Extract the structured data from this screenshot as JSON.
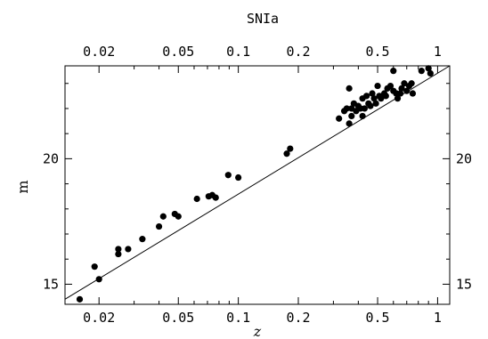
{
  "chart_data": {
    "type": "scatter",
    "title": "SNIa",
    "xlabel": "z",
    "ylabel": "m",
    "x_scale": "log",
    "xlim": [
      0.0135,
      1.15
    ],
    "ylim": [
      14.2,
      23.7
    ],
    "grid": false,
    "x_ticks": [
      {
        "value": 0.02,
        "label": "0.02"
      },
      {
        "value": 0.05,
        "label": "0.05"
      },
      {
        "value": 0.1,
        "label": "0.1"
      },
      {
        "value": 0.2,
        "label": "0.2"
      },
      {
        "value": 0.5,
        "label": "0.5"
      },
      {
        "value": 1,
        "label": "1"
      }
    ],
    "y_ticks": [
      {
        "value": 15,
        "label": "15"
      },
      {
        "value": 20,
        "label": "20"
      }
    ],
    "fit_line": {
      "x": [
        0.0135,
        1.15
      ],
      "y": [
        14.4,
        23.7
      ]
    },
    "series": [
      {
        "points": [
          [
            0.016,
            14.4
          ],
          [
            0.019,
            15.7
          ],
          [
            0.02,
            15.2
          ],
          [
            0.025,
            16.4
          ],
          [
            0.025,
            16.2
          ],
          [
            0.028,
            16.4
          ],
          [
            0.033,
            16.8
          ],
          [
            0.04,
            17.3
          ],
          [
            0.042,
            17.7
          ],
          [
            0.048,
            17.8
          ],
          [
            0.05,
            17.7
          ],
          [
            0.062,
            18.4
          ],
          [
            0.071,
            18.5
          ],
          [
            0.074,
            18.55
          ],
          [
            0.077,
            18.45
          ],
          [
            0.089,
            19.35
          ],
          [
            0.1,
            19.25
          ],
          [
            0.175,
            20.2
          ],
          [
            0.182,
            20.4
          ],
          [
            0.32,
            21.6
          ],
          [
            0.34,
            21.9
          ],
          [
            0.35,
            22.0
          ],
          [
            0.36,
            22.8
          ],
          [
            0.36,
            21.4
          ],
          [
            0.37,
            21.7
          ],
          [
            0.37,
            22.0
          ],
          [
            0.38,
            22.2
          ],
          [
            0.39,
            21.9
          ],
          [
            0.4,
            22.1
          ],
          [
            0.41,
            22.0
          ],
          [
            0.42,
            22.4
          ],
          [
            0.42,
            21.7
          ],
          [
            0.43,
            22.0
          ],
          [
            0.44,
            22.5
          ],
          [
            0.45,
            22.2
          ],
          [
            0.46,
            22.1
          ],
          [
            0.47,
            22.6
          ],
          [
            0.48,
            22.4
          ],
          [
            0.49,
            22.2
          ],
          [
            0.5,
            22.9
          ],
          [
            0.51,
            22.5
          ],
          [
            0.52,
            22.4
          ],
          [
            0.54,
            22.6
          ],
          [
            0.55,
            22.5
          ],
          [
            0.56,
            22.8
          ],
          [
            0.58,
            22.9
          ],
          [
            0.6,
            22.7
          ],
          [
            0.6,
            23.5
          ],
          [
            0.62,
            22.6
          ],
          [
            0.63,
            22.4
          ],
          [
            0.65,
            22.6
          ],
          [
            0.66,
            22.8
          ],
          [
            0.68,
            23.0
          ],
          [
            0.7,
            22.7
          ],
          [
            0.72,
            22.9
          ],
          [
            0.74,
            23.0
          ],
          [
            0.75,
            22.6
          ],
          [
            0.83,
            23.5
          ],
          [
            0.9,
            23.6
          ],
          [
            0.92,
            23.4
          ]
        ]
      }
    ]
  }
}
